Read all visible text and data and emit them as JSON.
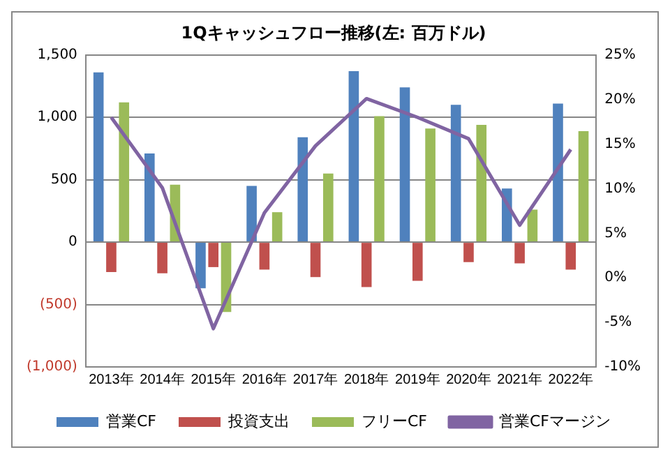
{
  "chart_data": {
    "type": "bar",
    "title": "1Qキャッシュフロー推移(左: 百万ドル)",
    "categories": [
      "2013年",
      "2014年",
      "2015年",
      "2016年",
      "2017年",
      "2018年",
      "2019年",
      "2020年",
      "2021年",
      "2022年"
    ],
    "series": [
      {
        "name": "営業CF",
        "color": "#4f81bd",
        "values": [
          1360,
          710,
          -370,
          450,
          840,
          1370,
          1240,
          1100,
          430,
          1110
        ]
      },
      {
        "name": "投資支出",
        "color": "#c0504d",
        "values": [
          -240,
          -250,
          -200,
          -220,
          -280,
          -360,
          -310,
          -160,
          -170,
          -220
        ]
      },
      {
        "name": "フリーCF",
        "color": "#9bbb59",
        "values": [
          1120,
          460,
          -560,
          240,
          550,
          1010,
          910,
          940,
          260,
          890
        ]
      },
      {
        "name": "営業CFマージン",
        "type": "line",
        "axis": "y2",
        "color": "#8064a2",
        "values": [
          18.0,
          10.1,
          -5.7,
          7.3,
          14.8,
          20.1,
          18.0,
          15.6,
          5.9,
          14.4
        ]
      }
    ],
    "ylim": [
      -1000,
      1500
    ],
    "yticks": [
      {
        "value": -1000,
        "label": "(1,000)"
      },
      {
        "value": -500,
        "label": "(500)"
      },
      0,
      {
        "value": 500,
        "label": "500"
      },
      {
        "value": 1000,
        "label": "1,000"
      },
      {
        "value": 1500,
        "label": "1,500"
      }
    ],
    "y2lim": [
      -10,
      25
    ],
    "y2ticks": [
      {
        "value": -10,
        "label": "-10%"
      },
      {
        "value": -5,
        "label": "-5%"
      },
      {
        "value": 0,
        "label": "0%"
      },
      {
        "value": 5,
        "label": "5%"
      },
      {
        "value": 10,
        "label": "10%"
      },
      {
        "value": 15,
        "label": "15%"
      },
      {
        "value": 20,
        "label": "20%"
      },
      {
        "value": 25,
        "label": "25%"
      }
    ],
    "grid": "y",
    "legend": "bottom",
    "marker": "none",
    "line_style": "solid"
  }
}
